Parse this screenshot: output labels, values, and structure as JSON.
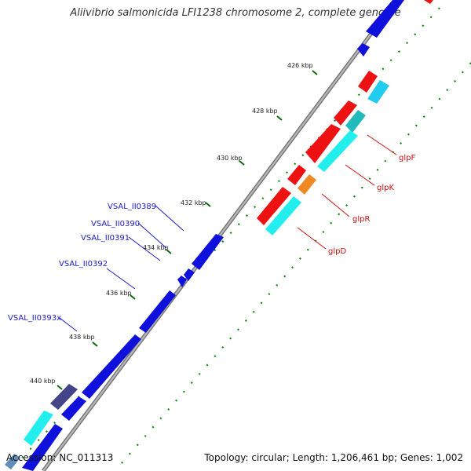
{
  "title": "Aliivibrio salmonicida LFI1238 chromosome 2, complete genome",
  "footer": {
    "accession": "Accession: NC_011313",
    "summary": "Topology: circular; Length: 1,206,461 bp; Genes: 1,002"
  },
  "scale_ticks": [
    "426 kbp",
    "428 kbp",
    "430 kbp",
    "432 kbp",
    "434 kbp",
    "436 kbp",
    "438 kbp",
    "440 kbp"
  ],
  "gene_labels_left": [
    "VSAL_II0389",
    "VSAL_II0390",
    "VSAL_II0391",
    "VSAL_II0392",
    "VSAL_II0393x"
  ],
  "gene_labels_right": [
    "glpF",
    "glpK",
    "glpR",
    "glpD"
  ],
  "colors": {
    "forward_gene": "#1010dd",
    "reverse_gene": "#ee1111",
    "cyan_track": "#22eeee",
    "teal_track": "#22bbbb",
    "orange_track": "#ee8822",
    "navy_block": "#444488",
    "left_label": "#1a1acc",
    "right_label": "#cc1111"
  }
}
